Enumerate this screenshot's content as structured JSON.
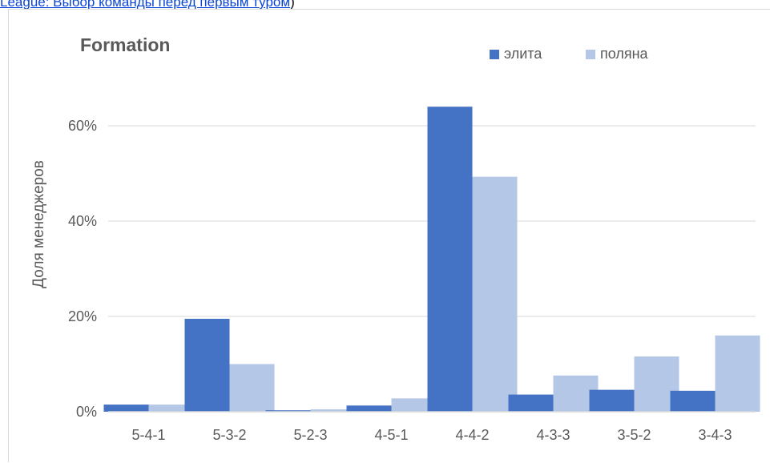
{
  "header": {
    "link_text": "League: Выбор команды перед первым туром",
    "after_text": ")"
  },
  "colors": {
    "series_elite": "#4472c4",
    "series_polyana": "#b4c7e7",
    "grid": "#d9d9d9",
    "text": "#595959"
  },
  "chart_data": {
    "type": "bar",
    "title": "Formation",
    "xlabel": "",
    "ylabel": "Доля менеджеров",
    "categories": [
      "5-4-1",
      "5-3-2",
      "5-2-3",
      "4-5-1",
      "4-4-2",
      "4-3-3",
      "3-5-2",
      "3-4-3"
    ],
    "series": [
      {
        "name": "элита",
        "color": "#4472c4",
        "values": [
          1.5,
          19.5,
          0.3,
          1.3,
          64.0,
          3.6,
          4.6,
          4.4
        ]
      },
      {
        "name": "поляна",
        "color": "#b4c7e7",
        "values": [
          1.5,
          10.0,
          0.5,
          2.8,
          49.3,
          7.6,
          11.6,
          16.0
        ]
      }
    ],
    "yticks": [
      "0%",
      "20%",
      "40%",
      "60%"
    ],
    "ytick_values": [
      0,
      20,
      40,
      60
    ],
    "ylim": [
      0,
      70
    ],
    "grid": true,
    "legend_position": "top-right"
  }
}
